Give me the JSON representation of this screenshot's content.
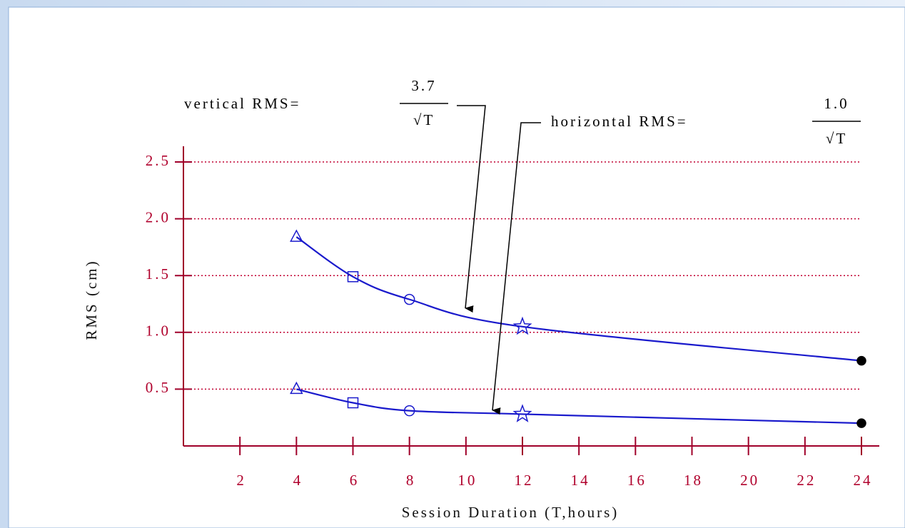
{
  "chart_data": {
    "type": "line",
    "xlabel": "Session Duration (T,hours)",
    "ylabel": "RMS (cm)",
    "x": [
      4,
      6,
      8,
      12,
      24
    ],
    "series": [
      {
        "color": "#1a1acc",
        "values": [
          1.84,
          1.49,
          1.29,
          1.05,
          0.75
        ]
      },
      {
        "color": "#1a1acc",
        "values": [
          0.5,
          0.38,
          0.31,
          0.28,
          0.2
        ]
      }
    ],
    "markers": [
      "triangle",
      "square",
      "circle",
      "star",
      "dot"
    ],
    "xlim": [
      0,
      24
    ],
    "xticks": [
      2,
      4,
      6,
      8,
      10,
      12,
      14,
      16,
      18,
      20,
      22,
      24
    ],
    "ylim": [
      0,
      2.5
    ],
    "yticks": [
      {
        "value": 0.5,
        "label": "0.5"
      },
      {
        "value": 1,
        "label": "1.0"
      },
      {
        "value": 1.5,
        "label": "1.5"
      },
      {
        "value": 2,
        "label": "2.0"
      },
      {
        "value": 2.5,
        "label": "2.5"
      }
    ],
    "grid": true,
    "annotations": [
      {
        "text": "vertical RMS=",
        "numerator": "3.7",
        "denominator": "√T"
      },
      {
        "text": "horizontal RMS=",
        "numerator": "1.0",
        "denominator": "√T"
      }
    ]
  }
}
